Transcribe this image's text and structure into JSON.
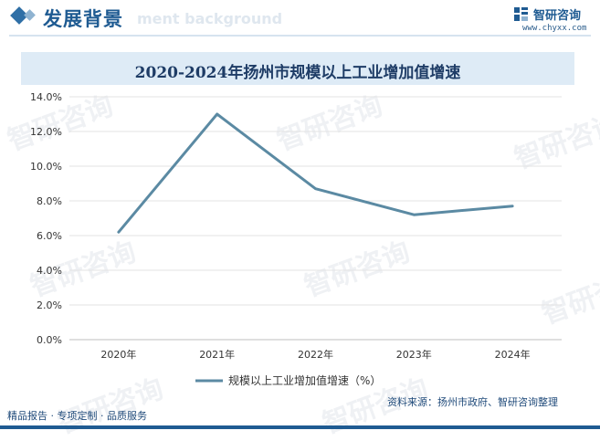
{
  "header": {
    "section_title": "发展背景",
    "section_subtitle_en": "ment background",
    "brand_name": "智研咨询",
    "brand_url": "www.chyxx.com"
  },
  "colors": {
    "primary": "#1f5b92",
    "line": "#5b8aa3",
    "title_bg": "#deebf6"
  },
  "icons": [
    "diamond-icon",
    "zhiyan-logo-icon"
  ],
  "chart_data": {
    "type": "line",
    "title": "2020-2024年扬州市规模以上工业增加值增速",
    "categories": [
      "2020年",
      "2021年",
      "2022年",
      "2023年",
      "2024年"
    ],
    "series": [
      {
        "name": "规模以上工业增加值增速（%）",
        "values": [
          6.2,
          13.0,
          8.7,
          7.2,
          7.7
        ]
      }
    ],
    "y_ticks": [
      "0.0%",
      "2.0%",
      "4.0%",
      "6.0%",
      "8.0%",
      "10.0%",
      "12.0%",
      "14.0%"
    ],
    "ylim": [
      0,
      14
    ],
    "grid": true,
    "legend_position": "bottom"
  },
  "footer": {
    "left": "精品报告 · 专项定制 · 品质服务",
    "source": "资料来源：扬州市政府、智研咨询整理"
  },
  "watermark": "智研咨询"
}
